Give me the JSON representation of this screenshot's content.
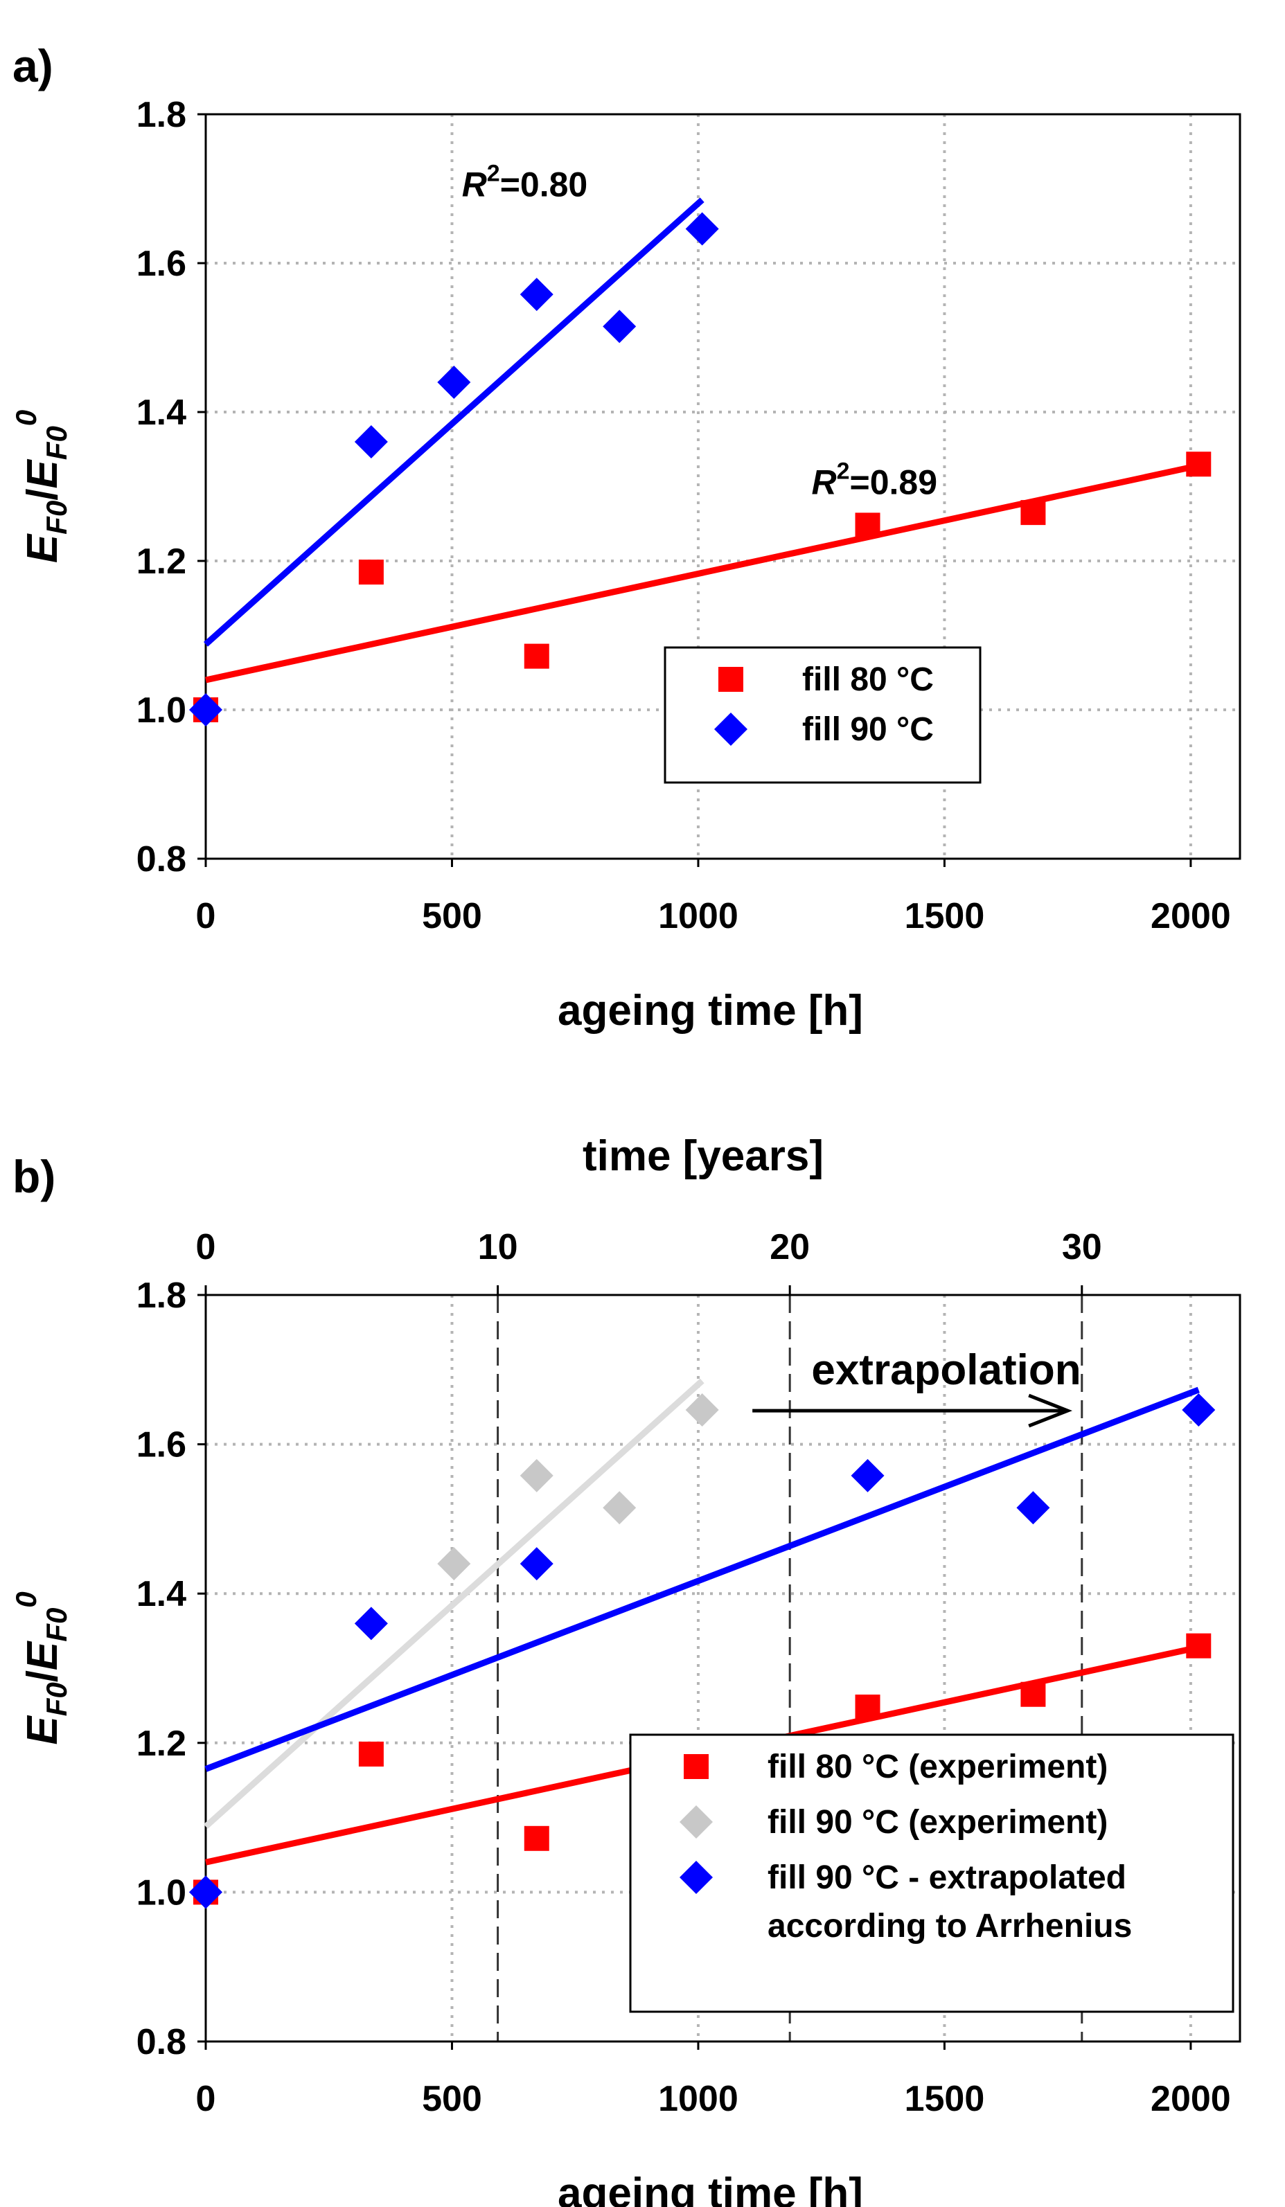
{
  "chart_data": [
    {
      "panel": "a)",
      "type": "scatter",
      "xlabel": "ageing time [h]",
      "ylabel_base": "E",
      "ylabel_sub": "F0",
      "ylabel_slash": "/",
      "ylabel_sup": "0",
      "xlim": [
        0,
        2100
      ],
      "ylim": [
        0.8,
        1.8
      ],
      "xticks": [
        0,
        500,
        1000,
        1500,
        2000
      ],
      "yticks": [
        0.8,
        1.0,
        1.2,
        1.4,
        1.6,
        1.8
      ],
      "ytick_labels": [
        "0.8",
        "1.0",
        "1.2",
        "1.4",
        "1.6",
        "1.8"
      ],
      "grid": true,
      "legend_position": "center-right",
      "series": [
        {
          "name": "fill 80 °C",
          "marker": "square",
          "color": "#ff0000",
          "x": [
            0,
            336,
            672,
            1344,
            1680,
            2016
          ],
          "y": [
            1.0,
            1.185,
            1.072,
            1.248,
            1.265,
            1.33
          ],
          "fit": {
            "x": [
              0,
              2016
            ],
            "y": [
              1.04,
              1.328
            ]
          }
        },
        {
          "name": "fill 90 °C",
          "marker": "diamond",
          "color": "#0000ff",
          "x": [
            0,
            336,
            504,
            672,
            840,
            1008
          ],
          "y": [
            1.0,
            1.36,
            1.44,
            1.558,
            1.515,
            1.646
          ],
          "fit": {
            "x": [
              0,
              1008
            ],
            "y": [
              1.088,
              1.685
            ]
          }
        }
      ],
      "annotations": [
        {
          "text_italic": "R",
          "sup": "2",
          "text": "=0.80",
          "at": [
            520,
            1.69
          ]
        },
        {
          "text_italic": "R",
          "sup": "2",
          "text": "=0.89",
          "at": [
            1230,
            1.29
          ]
        }
      ]
    },
    {
      "panel": "b)",
      "type": "scatter",
      "xlabel": "ageing time [h]",
      "x2label": "time [years]",
      "ylabel_base": "E",
      "ylabel_sub": "F0",
      "ylabel_slash": "/",
      "ylabel_sup": "0",
      "xlim": [
        0,
        2100
      ],
      "ylim": [
        0.8,
        1.8
      ],
      "xticks": [
        0,
        500,
        1000,
        1500,
        2000
      ],
      "yticks": [
        0.8,
        1.0,
        1.2,
        1.4,
        1.6,
        1.8
      ],
      "ytick_labels": [
        "0.8",
        "1.0",
        "1.2",
        "1.4",
        "1.6",
        "1.8"
      ],
      "x2ticks": [
        0,
        10,
        20,
        30
      ],
      "x2_hours_per_year": 59.3,
      "year_gridlines_h": [
        593,
        1186,
        1779
      ],
      "grid": true,
      "legend_position": "bottom-right",
      "arrow_label": "extrapolation",
      "arrow": {
        "x": [
          1110,
          1750
        ],
        "y": 1.645
      },
      "series": [
        {
          "name": "fill 80 °C (experiment)",
          "marker": "square",
          "color": "#ff0000",
          "x": [
            0,
            336,
            672,
            1344,
            1680,
            2016
          ],
          "y": [
            1.0,
            1.185,
            1.072,
            1.248,
            1.265,
            1.33
          ],
          "fit": {
            "x": [
              0,
              2016
            ],
            "y": [
              1.04,
              1.328
            ]
          }
        },
        {
          "name": "fill 90 °C (experiment)",
          "marker": "diamond",
          "color": "#c8c8c8",
          "fitcolor": "#dcdcdc",
          "x": [
            0,
            336,
            504,
            672,
            840,
            1008
          ],
          "y": [
            1.0,
            1.36,
            1.44,
            1.558,
            1.515,
            1.646
          ],
          "fit": {
            "x": [
              0,
              1008
            ],
            "y": [
              1.088,
              1.685
            ]
          }
        },
        {
          "name_line1": "fill 90 °C - extrapolated",
          "name_line2": "according to Arrhenius",
          "marker": "diamond",
          "color": "#0000ff",
          "x": [
            0,
            336,
            672,
            1344,
            1680,
            2016
          ],
          "y": [
            1.0,
            1.36,
            1.44,
            1.558,
            1.515,
            1.646
          ],
          "fit": {
            "x": [
              0,
              2016
            ],
            "y": [
              1.165,
              1.673
            ]
          }
        }
      ]
    }
  ]
}
